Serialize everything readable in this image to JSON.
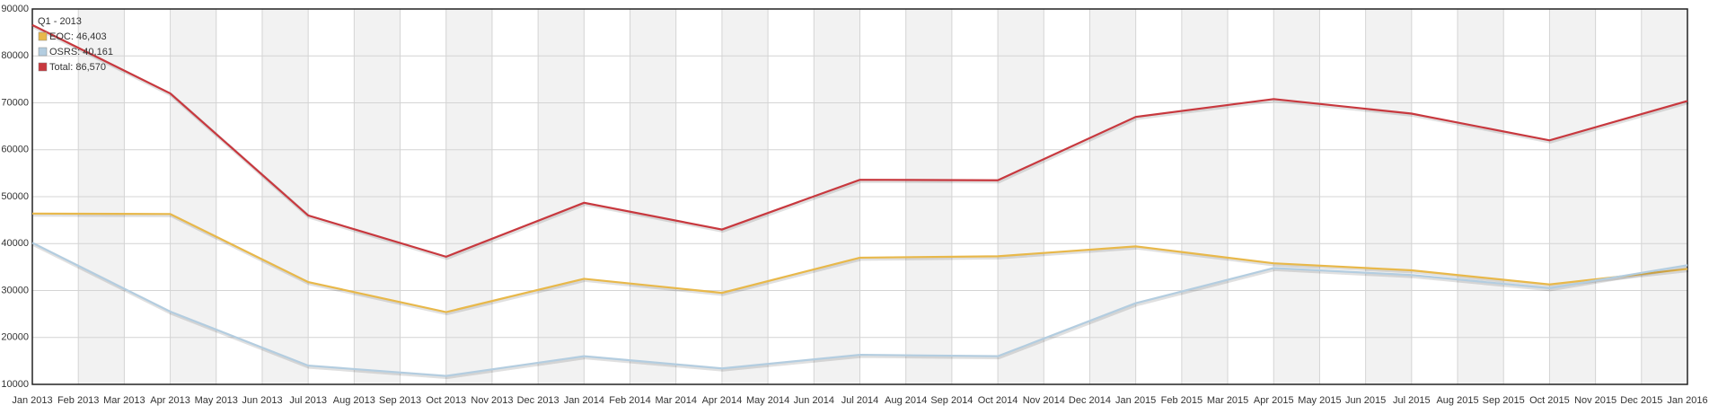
{
  "chart_data": {
    "type": "line",
    "categories": [
      "Jan 2013",
      "Feb 2013",
      "Mar 2013",
      "Apr 2013",
      "May 2013",
      "Jun 2013",
      "Jul 2013",
      "Aug 2013",
      "Sep 2013",
      "Oct 2013",
      "Nov 2013",
      "Dec 2013",
      "Jan 2014",
      "Feb 2014",
      "Mar 2014",
      "Apr 2014",
      "May 2014",
      "Jun 2014",
      "Jul 2014",
      "Aug 2014",
      "Sep 2014",
      "Oct 2014",
      "Nov 2014",
      "Dec 2014",
      "Jan 2015",
      "Feb 2015",
      "Mar 2015",
      "Apr 2015",
      "May 2015",
      "Jun 2015",
      "Jul 2015",
      "Aug 2015",
      "Sep 2015",
      "Oct 2015",
      "Nov 2015",
      "Dec 2015",
      "Jan 2016"
    ],
    "x": [
      "Jan 2013",
      "Apr 2013",
      "Jul 2013",
      "Oct 2013",
      "Jan 2014",
      "Apr 2014",
      "Jul 2014",
      "Oct 2014",
      "Jan 2015",
      "Apr 2015",
      "Jul 2015",
      "Oct 2015",
      "Jan 2016"
    ],
    "series": [
      {
        "color": "#e8b84a",
        "values": [
          46403,
          46300,
          31800,
          25400,
          32500,
          29500,
          37000,
          37300,
          39400,
          35800,
          34300,
          31300,
          34600
        ]
      },
      {
        "color": "#b3cde0",
        "values": [
          40161,
          25500,
          14000,
          11800,
          16000,
          13400,
          16300,
          16000,
          27300,
          34800,
          33300,
          30500,
          35400
        ]
      },
      {
        "color": "#c8383e",
        "values": [
          86570,
          72000,
          46000,
          37200,
          48700,
          43000,
          53600,
          53500,
          67000,
          70800,
          67700,
          62000,
          70400
        ]
      }
    ],
    "legend": {
      "title": "Q1 - 2013",
      "labels": [
        "EOC: 46,403",
        "OSRS: 40,161",
        "Total: 86,570"
      ]
    },
    "ylim": [
      10000,
      90000
    ],
    "yticks": [
      10000,
      20000,
      30000,
      40000,
      50000,
      60000,
      70000,
      80000,
      90000
    ],
    "grid": true
  }
}
